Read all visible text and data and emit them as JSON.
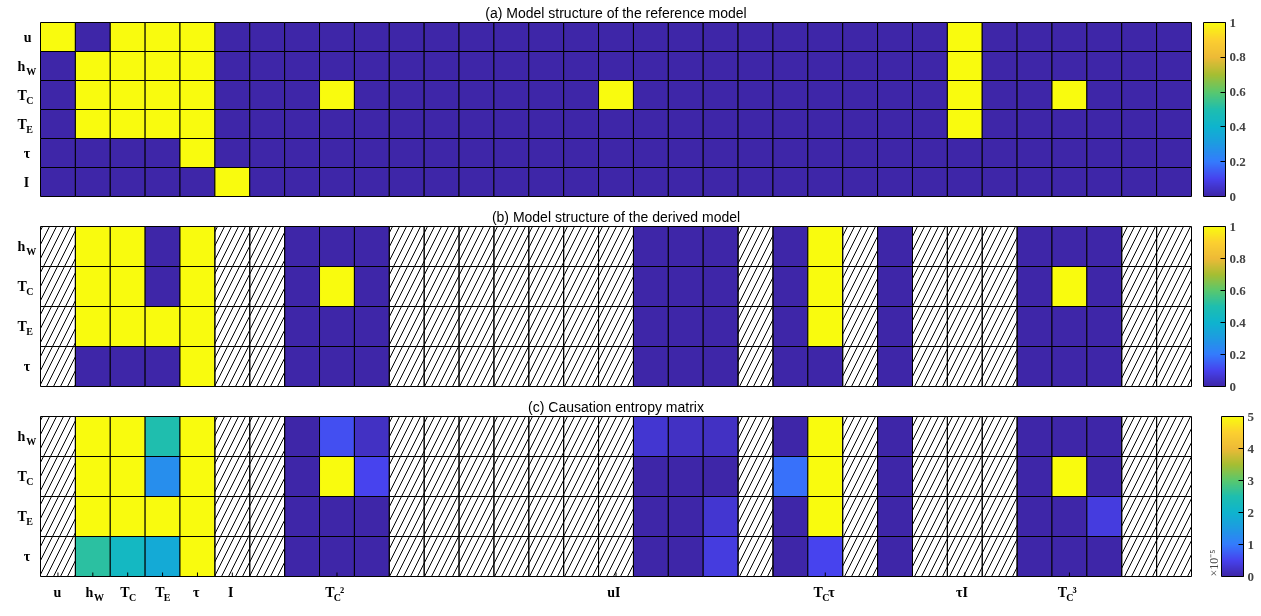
{
  "chart_data": [
    {
      "type": "heatmap",
      "title": "(a) Model structure of the reference model",
      "categories": [
        null,
        null,
        null,
        null,
        null,
        null,
        null,
        null,
        null,
        null,
        null,
        null,
        null,
        null,
        null,
        null,
        null,
        null,
        null,
        null,
        null,
        null,
        null,
        null,
        null,
        null,
        null,
        null,
        null,
        null,
        null,
        null,
        null
      ],
      "y_categories": [
        "u",
        "h$_{W}$",
        "T$_{C}$",
        "T$_{E}$",
        "τ",
        "I"
      ],
      "cells": [
        [
          1,
          0,
          1,
          1,
          1,
          0,
          0,
          0,
          0,
          0,
          0,
          0,
          0,
          0,
          0,
          0,
          0,
          0,
          0,
          0,
          0,
          0,
          0,
          0,
          0,
          0,
          1,
          0,
          0,
          0,
          0,
          0,
          0
        ],
        [
          0,
          1,
          1,
          1,
          1,
          0,
          0,
          0,
          0,
          0,
          0,
          0,
          0,
          0,
          0,
          0,
          0,
          0,
          0,
          0,
          0,
          0,
          0,
          0,
          0,
          0,
          1,
          0,
          0,
          0,
          0,
          0,
          0
        ],
        [
          0,
          1,
          1,
          1,
          1,
          0,
          0,
          0,
          1,
          0,
          0,
          0,
          0,
          0,
          0,
          0,
          1,
          0,
          0,
          0,
          0,
          0,
          0,
          0,
          0,
          0,
          1,
          0,
          0,
          1,
          0,
          0,
          0
        ],
        [
          0,
          1,
          1,
          1,
          1,
          0,
          0,
          0,
          0,
          0,
          0,
          0,
          0,
          0,
          0,
          0,
          0,
          0,
          0,
          0,
          0,
          0,
          0,
          0,
          0,
          0,
          1,
          0,
          0,
          0,
          0,
          0,
          0
        ],
        [
          0,
          0,
          0,
          0,
          1,
          0,
          0,
          0,
          0,
          0,
          0,
          0,
          0,
          0,
          0,
          0,
          0,
          0,
          0,
          0,
          0,
          0,
          0,
          0,
          0,
          0,
          0,
          0,
          0,
          0,
          0,
          0,
          0
        ],
        [
          0,
          0,
          0,
          0,
          0,
          1,
          0,
          0,
          0,
          0,
          0,
          0,
          0,
          0,
          0,
          0,
          0,
          0,
          0,
          0,
          0,
          0,
          0,
          0,
          0,
          0,
          0,
          0,
          0,
          0,
          0,
          0,
          0
        ]
      ],
      "clim": [
        0,
        1
      ],
      "cticks": [
        0,
        0.2,
        0.4,
        0.6,
        0.8,
        1
      ],
      "tick_labels": "y"
    },
    {
      "type": "heatmap",
      "title": "(b) Model structure of the derived model",
      "categories": [
        null,
        null,
        null,
        null,
        null,
        null,
        null,
        null,
        null,
        null,
        null,
        null,
        null,
        null,
        null,
        null,
        null,
        null,
        null,
        null,
        null,
        null,
        null,
        null,
        null,
        null,
        null,
        null,
        null,
        null,
        null,
        null,
        null
      ],
      "y_categories": [
        "h$_{W}$",
        "T$_{C}$",
        "T$_{E}$",
        "τ"
      ],
      "cells": [
        [
          null,
          1,
          1,
          0,
          1,
          null,
          null,
          0,
          0,
          0,
          null,
          null,
          null,
          null,
          null,
          null,
          null,
          0,
          0,
          0,
          null,
          0,
          1,
          null,
          0,
          null,
          null,
          null,
          0,
          0,
          0,
          null,
          null
        ],
        [
          null,
          1,
          1,
          0,
          1,
          null,
          null,
          0,
          1,
          0,
          null,
          null,
          null,
          null,
          null,
          null,
          null,
          0,
          0,
          0,
          null,
          0,
          1,
          null,
          0,
          null,
          null,
          null,
          0,
          1,
          0,
          null,
          null
        ],
        [
          null,
          1,
          1,
          1,
          1,
          null,
          null,
          0,
          0,
          0,
          null,
          null,
          null,
          null,
          null,
          null,
          null,
          0,
          0,
          0,
          null,
          0,
          1,
          null,
          0,
          null,
          null,
          null,
          0,
          0,
          0,
          null,
          null
        ],
        [
          null,
          0,
          0,
          0,
          1,
          null,
          null,
          0,
          0,
          0,
          null,
          null,
          null,
          null,
          null,
          null,
          null,
          0,
          0,
          0,
          null,
          0,
          0,
          null,
          0,
          null,
          null,
          null,
          0,
          0,
          0,
          null,
          null
        ]
      ],
      "clim": [
        0,
        1
      ],
      "cticks": [
        0,
        0.2,
        0.4,
        0.6,
        0.8,
        1
      ],
      "tick_labels": "y"
    },
    {
      "type": "heatmap",
      "title": "(c) Causation entropy matrix",
      "categories": [
        "u",
        "h$_{W}$",
        "T$_{C}$",
        "T$_{E}$",
        "τ",
        "I",
        null,
        null,
        "T$_{C}$²",
        null,
        null,
        null,
        null,
        null,
        null,
        null,
        "uI",
        null,
        null,
        null,
        null,
        null,
        "T$_{C}$τ",
        null,
        null,
        null,
        "τI",
        null,
        null,
        "T$_{C}$³",
        null,
        null,
        null
      ],
      "y_categories": [
        "h$_{W}$",
        "T$_{C}$",
        "T$_{E}$",
        "τ"
      ],
      "cells": [
        [
          null,
          5,
          5,
          2.5,
          5,
          null,
          null,
          0,
          0.6,
          0.2,
          null,
          null,
          null,
          null,
          null,
          null,
          null,
          0.3,
          0.2,
          0.2,
          null,
          0,
          5,
          null,
          0,
          null,
          null,
          null,
          0,
          0,
          0,
          null,
          null
        ],
        [
          null,
          5,
          5,
          1.3,
          5,
          null,
          null,
          0,
          5,
          0.5,
          null,
          null,
          null,
          null,
          null,
          null,
          null,
          0,
          0,
          0,
          null,
          0.9,
          5,
          null,
          0,
          null,
          null,
          null,
          0,
          5,
          0,
          null,
          null
        ],
        [
          null,
          5,
          5,
          5,
          5,
          null,
          null,
          0,
          0,
          0,
          null,
          null,
          null,
          null,
          null,
          null,
          null,
          0,
          0,
          0.3,
          null,
          0,
          5,
          null,
          0,
          null,
          null,
          null,
          0,
          0,
          0.4,
          null,
          null
        ],
        [
          null,
          2.6,
          2.2,
          1.8,
          5,
          null,
          null,
          0,
          0,
          0,
          null,
          null,
          null,
          null,
          null,
          null,
          null,
          0,
          0,
          0.4,
          null,
          0,
          0.5,
          null,
          0,
          null,
          null,
          null,
          0,
          0,
          0,
          null,
          null
        ]
      ],
      "clim": [
        0,
        5
      ],
      "cticks": [
        0,
        1,
        2,
        3,
        4,
        5
      ],
      "clabel": "×10⁻⁵"
    }
  ]
}
